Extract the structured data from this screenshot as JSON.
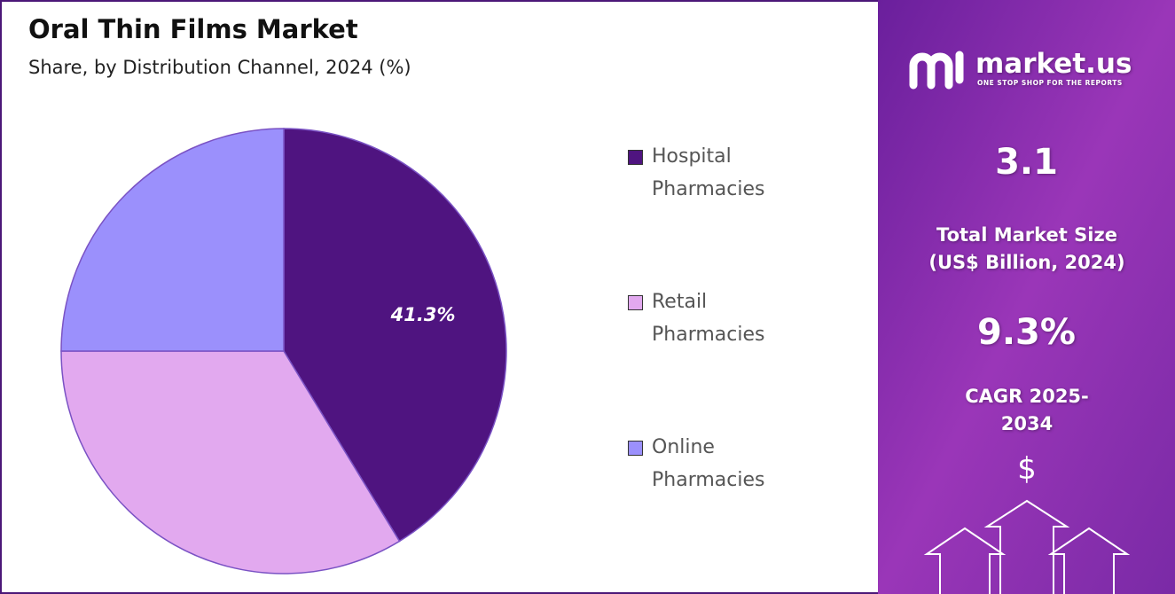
{
  "chart_data": {
    "type": "pie",
    "title": "Oral Thin Films Market",
    "subtitle": "Share, by Distribution Channel, 2024 (%)",
    "categories": [
      "Hospital Pharmacies",
      "Retail Pharmacies",
      "Online Pharmacies"
    ],
    "values": [
      41.3,
      33.7,
      25.0
    ],
    "value_labels": [
      "41.3%",
      null,
      null
    ],
    "colors": [
      "#4f1480",
      "#e2a9ef",
      "#9b90fc"
    ],
    "legend": "right"
  },
  "logo": {
    "name": "market.us",
    "tagline": "ONE STOP SHOP FOR THE REPORTS"
  },
  "panel": {
    "market_size": "3.1",
    "market_size_label": "Total Market Size (US$ Billion, 2024)",
    "cagr": "9.3%",
    "cagr_label": "CAGR 2025-2034"
  }
}
